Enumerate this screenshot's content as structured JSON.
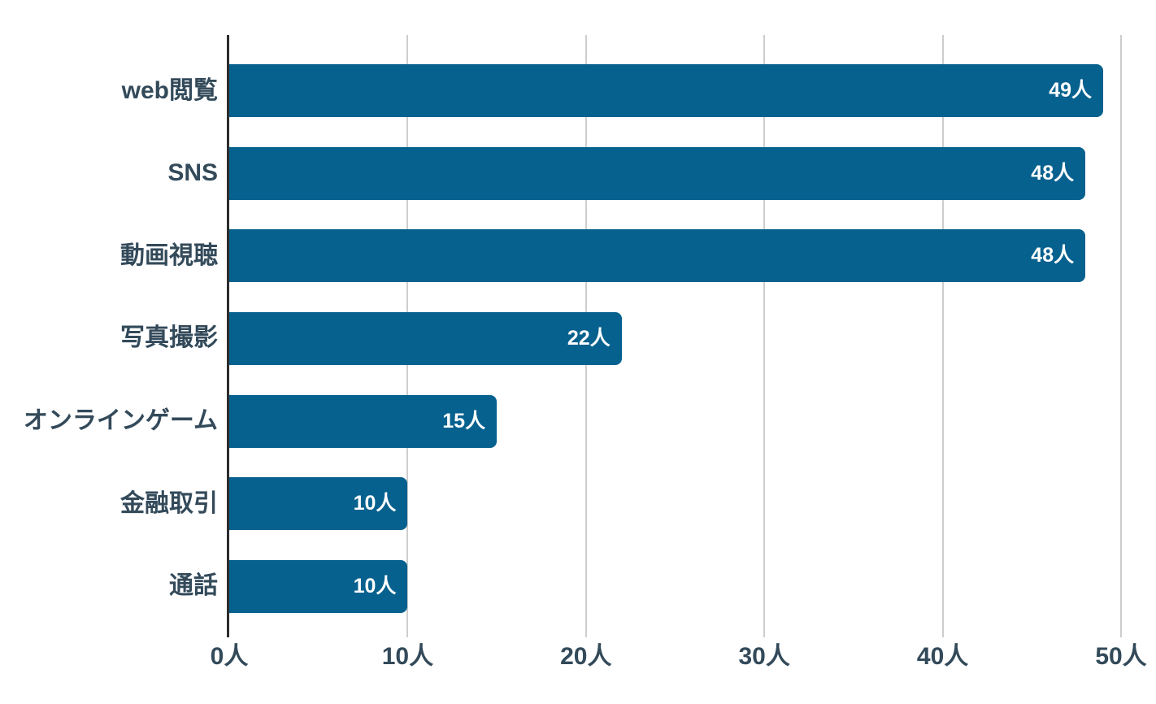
{
  "chart_data": {
    "type": "bar",
    "orientation": "horizontal",
    "title": "",
    "categories": [
      "web閲覧",
      "SNS",
      "動画視聴",
      "写真撮影",
      "オンラインゲーム",
      "金融取引",
      "通話"
    ],
    "values": [
      49,
      48,
      48,
      22,
      15,
      10,
      10
    ],
    "value_labels": [
      "49人",
      "48人",
      "48人",
      "22人",
      "15人",
      "10人",
      "10人"
    ],
    "value_suffix": "人",
    "xlabel": "",
    "ylabel": "",
    "xlim": [
      0,
      50
    ],
    "x_ticks": [
      0,
      10,
      20,
      30,
      40,
      50
    ],
    "x_tick_labels": [
      "0人",
      "10人",
      "20人",
      "30人",
      "40人",
      "50人"
    ],
    "grid": true,
    "legend_position": "none",
    "colors": {
      "bar": "#06618E",
      "category_label": "#334A5A",
      "tick_label": "#334A5A",
      "value_text": "#FFFFFF",
      "gridline": "#CDCDCD",
      "axis_line": "#2D2D2D",
      "background": "#FFFFFF"
    }
  }
}
